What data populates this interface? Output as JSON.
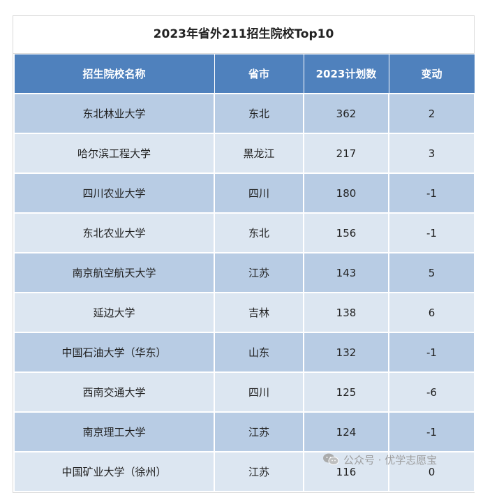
{
  "title": "2023年省外211招生院校Top10",
  "headers": [
    "招生院校名称",
    "省市",
    "2023计划数",
    "变动"
  ],
  "rows": [
    [
      "东北林业大学",
      "东北",
      "362",
      "2"
    ],
    [
      "哈尔滨工程大学",
      "黑龙江",
      "217",
      "3"
    ],
    [
      "四川农业大学",
      "四川",
      "180",
      "-1"
    ],
    [
      "东北农业大学",
      "东北",
      "156",
      "-1"
    ],
    [
      "南京航空航天大学",
      "江苏",
      "143",
      "5"
    ],
    [
      "延边大学",
      "吉林",
      "138",
      "6"
    ],
    [
      "中国石油大学（华东）",
      "山东",
      "132",
      "-1"
    ],
    [
      "西南交通大学",
      "四川",
      "125",
      "-6"
    ],
    [
      "南京理工大学",
      "江苏",
      "124",
      "-1"
    ],
    [
      "中国矿业大学（徐州）",
      "江苏",
      "116",
      "0"
    ]
  ],
  "watermark": {
    "text": "公众号 · 优学志愿宝",
    "icon": "wechat-icon"
  },
  "colors": {
    "header": "#4f81bd",
    "row_odd": "#b8cce4",
    "row_even": "#dce6f1"
  }
}
